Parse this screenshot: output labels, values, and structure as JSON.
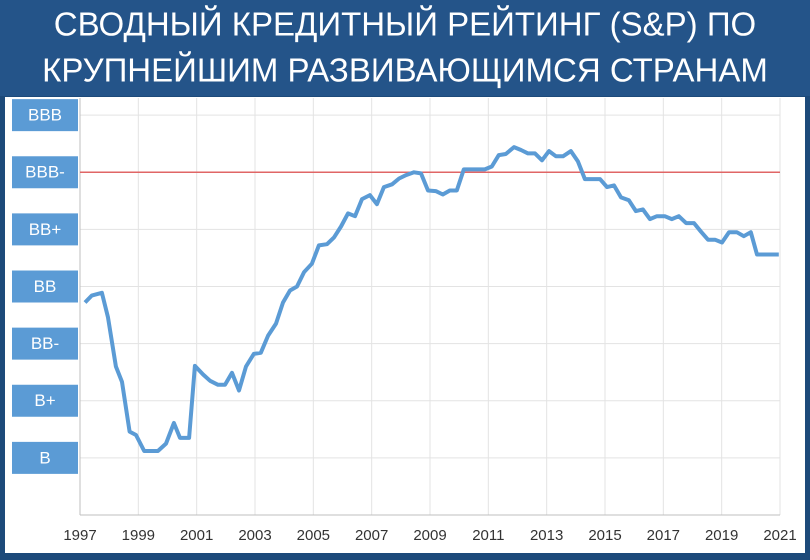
{
  "chart_data": {
    "type": "line",
    "title_lines": [
      "СВОДНЫЙ КРЕДИТНЫЙ РЕЙТИНГ (S&P) ПО",
      "КРУПНЕЙШИМ РАЗВИВАЮЩИМСЯ СТРАНАМ"
    ],
    "xlim": [
      1997,
      2021
    ],
    "xticks": [
      1997,
      1999,
      2001,
      2003,
      2005,
      2007,
      2009,
      2011,
      2013,
      2015,
      2017,
      2019,
      2021
    ],
    "ylim": [
      -1,
      6.3
    ],
    "yticks": [
      {
        "value": 6,
        "label": "BBB"
      },
      {
        "value": 5,
        "label": "BBB-"
      },
      {
        "value": 4,
        "label": "BB+"
      },
      {
        "value": 3,
        "label": "BB"
      },
      {
        "value": 2,
        "label": "BB-"
      },
      {
        "value": 1,
        "label": "B+"
      },
      {
        "value": 0,
        "label": "B"
      }
    ],
    "grid": true,
    "reference_line": {
      "value": 5,
      "color": "#e06666"
    },
    "series": [
      {
        "color": "#5b9bd5",
        "x": [
          1997.17,
          1997.4,
          1997.75,
          1997.96,
          1998.23,
          1998.44,
          1998.7,
          1998.92,
          1999.2,
          1999.67,
          1999.95,
          2000.22,
          2000.43,
          2000.74,
          2000.94,
          2001.22,
          2001.46,
          2001.73,
          2001.97,
          2002.21,
          2002.45,
          2002.69,
          2002.96,
          2003.2,
          2003.45,
          2003.72,
          2003.96,
          2004.2,
          2004.44,
          2004.68,
          2004.95,
          2005.19,
          2005.47,
          2005.71,
          2005.95,
          2006.19,
          2006.43,
          2006.67,
          2006.94,
          2007.18,
          2007.42,
          2007.7,
          2007.94,
          2008.18,
          2008.45,
          2008.69,
          2008.93,
          2009.2,
          2009.44,
          2009.68,
          2009.92,
          2010.16,
          2010.64,
          2010.88,
          2011.12,
          2011.36,
          2011.6,
          2011.88,
          2012.12,
          2012.36,
          2012.6,
          2012.84,
          2013.08,
          2013.32,
          2013.56,
          2013.83,
          2014.07,
          2014.31,
          2014.55,
          2014.83,
          2015.07,
          2015.31,
          2015.55,
          2015.82,
          2016.06,
          2016.3,
          2016.54,
          2016.78,
          2017.05,
          2017.29,
          2017.53,
          2017.78,
          2018.05,
          2018.29,
          2018.53,
          2018.77,
          2019.01,
          2019.25,
          2019.52,
          2019.76,
          2020.0,
          2020.21,
          2020.96
        ],
        "values": [
          2.72,
          2.84,
          2.89,
          2.46,
          1.6,
          1.33,
          0.46,
          0.4,
          0.12,
          0.12,
          0.25,
          0.61,
          0.35,
          0.35,
          1.61,
          1.46,
          1.35,
          1.28,
          1.28,
          1.49,
          1.18,
          1.6,
          1.82,
          1.84,
          2.14,
          2.35,
          2.72,
          2.93,
          3.0,
          3.25,
          3.4,
          3.72,
          3.74,
          3.86,
          4.05,
          4.28,
          4.23,
          4.53,
          4.6,
          4.44,
          4.74,
          4.79,
          4.89,
          4.95,
          5.0,
          4.98,
          4.68,
          4.67,
          4.61,
          4.68,
          4.68,
          5.05,
          5.05,
          5.05,
          5.1,
          5.3,
          5.32,
          5.44,
          5.39,
          5.33,
          5.33,
          5.21,
          5.37,
          5.28,
          5.28,
          5.37,
          5.19,
          4.88,
          4.88,
          4.88,
          4.74,
          4.77,
          4.56,
          4.51,
          4.32,
          4.35,
          4.18,
          4.23,
          4.23,
          4.18,
          4.23,
          4.11,
          4.11,
          3.96,
          3.82,
          3.82,
          3.77,
          3.95,
          3.95,
          3.88,
          3.95,
          3.56,
          3.56
        ]
      }
    ]
  }
}
